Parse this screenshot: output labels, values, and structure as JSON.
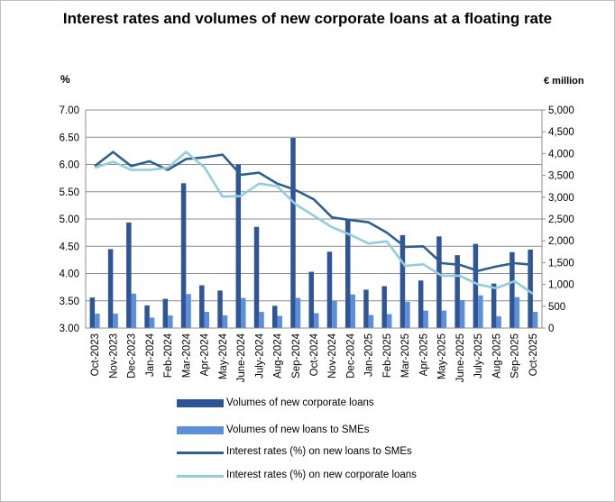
{
  "chart_data": {
    "type": "bar+line",
    "title": "Interest rates and volumes of new corporate loans at a  floating rate",
    "ylabel_left": "%",
    "ylabel_right": "€ million",
    "ylim_left": [
      3.0,
      7.0
    ],
    "ylim_right": [
      0,
      5000
    ],
    "yticks_left": [
      "3.00",
      "3.50",
      "4.00",
      "4.50",
      "5.00",
      "5.50",
      "6.00",
      "6.50",
      "7.00"
    ],
    "yticks_right": [
      "0",
      "500",
      "1,000",
      "1,500",
      "2,000",
      "2,500",
      "3,000",
      "3,500",
      "4,000",
      "4,500",
      "5,000"
    ],
    "grid": "horizontal",
    "legend_position": "bottom",
    "categories": [
      "Oct-2023",
      "Nov-2023",
      "Dec-2023",
      "Jan-2024",
      "Feb-2024",
      "Mar-2024",
      "Apr-2024",
      "May-2024",
      "June-2024",
      "July-2024",
      "Aug-2024",
      "Sep-2024",
      "Oct-2024",
      "Nov-2024",
      "Dec-2024",
      "Jan-2025",
      "Feb-2025",
      "Mar-2025",
      "Apr-2025",
      "May-2025",
      "June-2025",
      "July-2025",
      "Aug-2025",
      "Sep-2025",
      "Oct-2025"
    ],
    "series": [
      {
        "name": "Volumes of new corporate loans",
        "kind": "bar",
        "axis": "right",
        "color": "#2f5597",
        "values": [
          700,
          1810,
          2420,
          520,
          670,
          3320,
          980,
          860,
          3750,
          2320,
          510,
          4360,
          1290,
          1750,
          2480,
          880,
          960,
          2130,
          1090,
          2100,
          1670,
          1930,
          1020,
          1740,
          1800
        ]
      },
      {
        "name": "Volumes of new loans to SMEs",
        "kind": "bar",
        "axis": "right",
        "color": "#5b8fd9",
        "values": [
          330,
          330,
          790,
          240,
          290,
          780,
          370,
          290,
          690,
          370,
          280,
          690,
          340,
          620,
          770,
          300,
          320,
          600,
          400,
          400,
          640,
          750,
          270,
          710,
          370
        ]
      },
      {
        "name": "Interest rates (%) on new loans to SMEs",
        "kind": "line",
        "axis": "left",
        "color": "#2f5f8f",
        "values": [
          5.97,
          6.23,
          5.97,
          6.06,
          5.9,
          6.1,
          6.13,
          6.18,
          5.81,
          5.85,
          5.65,
          5.53,
          5.36,
          5.03,
          4.98,
          4.94,
          4.75,
          4.49,
          4.5,
          4.19,
          4.16,
          4.05,
          4.13,
          4.19,
          4.16
        ]
      },
      {
        "name": "Interest rates (%) on new corporate loans",
        "kind": "line",
        "axis": "left",
        "color": "#92cddc",
        "values": [
          5.94,
          6.05,
          5.9,
          5.9,
          5.94,
          6.23,
          5.95,
          5.41,
          5.42,
          5.65,
          5.6,
          5.27,
          5.06,
          4.85,
          4.71,
          4.55,
          4.59,
          4.14,
          4.17,
          3.96,
          3.96,
          3.8,
          3.73,
          3.86,
          3.63
        ]
      }
    ]
  }
}
